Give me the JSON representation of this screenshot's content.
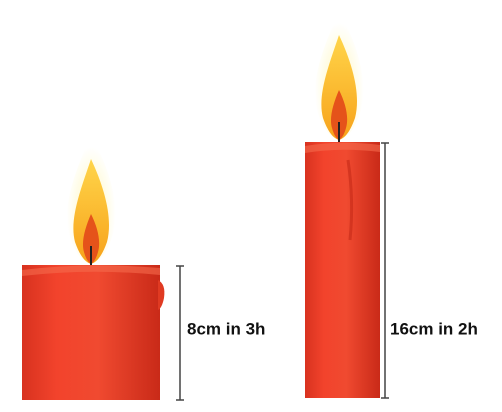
{
  "candles": [
    {
      "label": "8cm in 3h"
    },
    {
      "label": "16cm in 2h"
    }
  ]
}
